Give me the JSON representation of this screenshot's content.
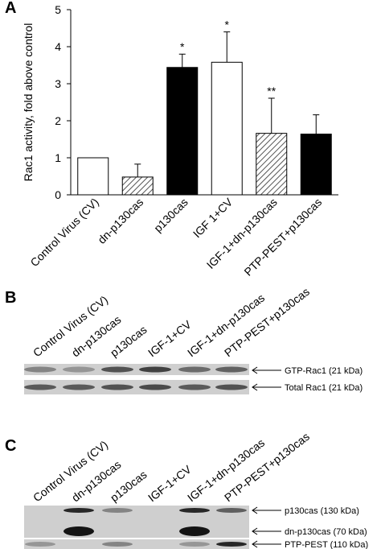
{
  "chart_data": {
    "type": "bar",
    "panel_label": "A",
    "y_label": "Rac1 activity, fold above control",
    "categories": [
      "Control Virus (CV)",
      "dn-p130cas",
      "p130cas",
      "IGF 1+CV",
      "IGF-1+dn-p130cas",
      "PTP-PEST+p130cas"
    ],
    "values": [
      1.0,
      0.48,
      3.44,
      3.58,
      1.66,
      1.64
    ],
    "errors": [
      0,
      0.35,
      0.36,
      0.82,
      0.95,
      0.52
    ],
    "colors": [
      "#ffffff",
      "hatch",
      "#000000",
      "#ffffff",
      "hatch",
      "#000000"
    ],
    "annotations": [
      null,
      null,
      "*",
      "*",
      "**",
      null
    ],
    "ylim": [
      0,
      5
    ],
    "yticks": [
      0,
      1,
      2,
      3,
      4,
      5
    ]
  },
  "blots": [
    {
      "label": "B",
      "lanes": [
        "Control Virus (CV)",
        "dn-p130cas",
        "p130cas",
        "IGF-1+CV",
        "IGF-1+dn-p130cas",
        "PTP-PEST+p130cas"
      ],
      "bands": [
        "GTP-Rac1 (21 kDa)",
        "Total Rac1 (21 kDa)"
      ]
    },
    {
      "label": "C",
      "lanes": [
        "Control Virus (CV)",
        "dn-p130cas",
        "p130cas",
        "IGF-1+CV",
        "IGF-1+dn-p130cas",
        "PTP-PEST+p130cas"
      ],
      "bands": [
        "p130cas (130 kDa)",
        "dn-p130cas (70 kDa)",
        "PTP-PEST (110 kDa)"
      ]
    }
  ]
}
